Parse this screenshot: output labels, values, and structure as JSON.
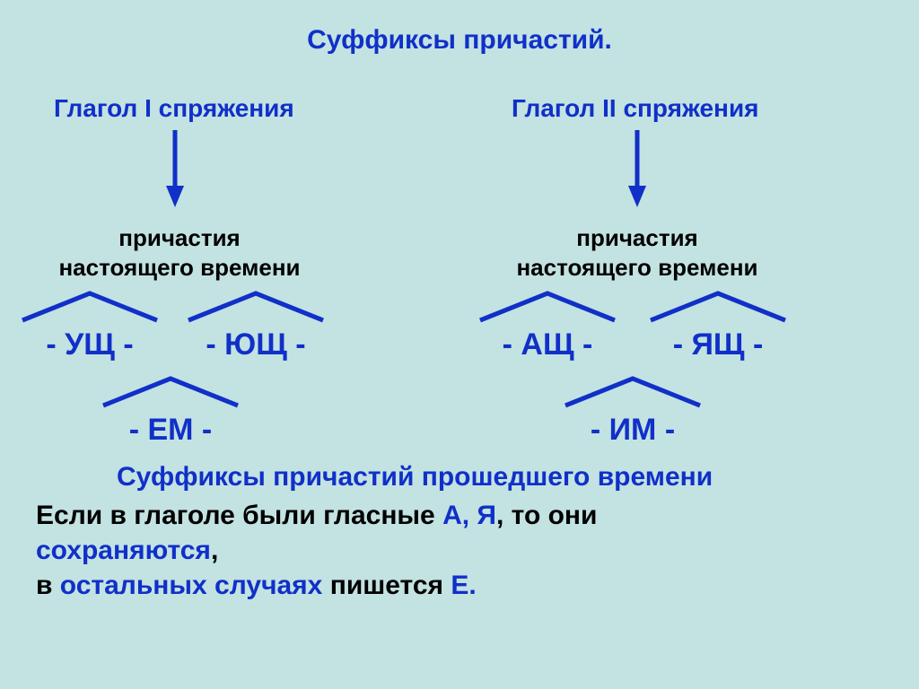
{
  "colors": {
    "background": "#c3e2e2",
    "primary": "#1030c8",
    "black": "#000000"
  },
  "fonts": {
    "title_size": 30,
    "heading_size": 28,
    "label_size": 26,
    "suffix_size": 34,
    "body_size": 30
  },
  "title": "Суффиксы причастий.",
  "left": {
    "heading": "Глагол I спряжения",
    "sub1": "причастия",
    "sub2": "настоящего времени",
    "suffixes": [
      "- УЩ -",
      "- ЮЩ -"
    ],
    "leaf": "- ЕМ -"
  },
  "right": {
    "heading": "Глагол II спряжения",
    "sub1": "причастия",
    "sub2": "настоящего времени",
    "suffixes": [
      "- АЩ -",
      "- ЯЩ -"
    ],
    "leaf": "- ИМ -"
  },
  "past_title": "Суффиксы причастий прошедшего времени",
  "line1_a": "Если в глаголе были гласные ",
  "line1_b": "А, Я",
  "line1_c": ", то они",
  "line2": "сохраняются",
  "line2_tail": ",",
  "line3_a": "в ",
  "line3_b": "остальных случаях",
  "line3_c": " пишется ",
  "line3_d": "Е.",
  "arrow": {
    "stroke_width": 5,
    "head_size": 18,
    "length": 74
  },
  "roof": {
    "width": 150,
    "height": 34,
    "stroke_width": 5
  }
}
